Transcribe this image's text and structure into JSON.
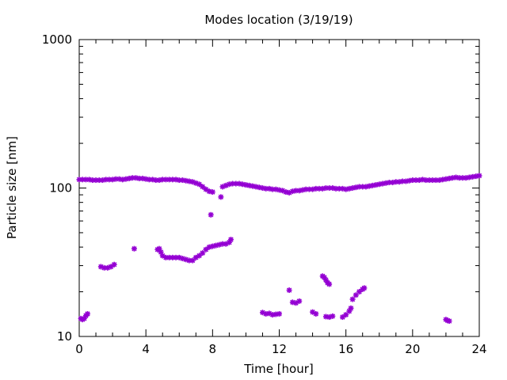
{
  "chart_data": {
    "type": "scatter",
    "title": "Modes location (3/19/19)",
    "xlabel": "Time [hour]",
    "ylabel": "Particle size [nm]",
    "xlim": [
      0,
      24
    ],
    "ylim": [
      10,
      1000
    ],
    "yscale": "log",
    "x_ticks": [
      0,
      4,
      8,
      12,
      16,
      20,
      24
    ],
    "x_tick_labels": [
      "0",
      "4",
      "8",
      "12",
      "16",
      "20",
      "24"
    ],
    "y_ticks": [
      10,
      100,
      1000
    ],
    "y_tick_labels": [
      "10",
      "100",
      "1000"
    ],
    "grid": false,
    "legend": "none",
    "marker_color": "#9400d3",
    "series": [
      {
        "values": [
          [
            0.0,
            114
          ],
          [
            0.2,
            114
          ],
          [
            0.4,
            114
          ],
          [
            0.6,
            114
          ],
          [
            0.8,
            113
          ],
          [
            1.0,
            113
          ],
          [
            1.2,
            113
          ],
          [
            1.4,
            113
          ],
          [
            1.6,
            114
          ],
          [
            1.8,
            114
          ],
          [
            2.0,
            114
          ],
          [
            2.2,
            115
          ],
          [
            2.4,
            115
          ],
          [
            2.6,
            114
          ],
          [
            2.8,
            115
          ],
          [
            3.0,
            116
          ],
          [
            3.2,
            117
          ],
          [
            3.4,
            117
          ],
          [
            3.6,
            116
          ],
          [
            3.8,
            116
          ],
          [
            4.0,
            115
          ],
          [
            4.2,
            114
          ],
          [
            4.4,
            114
          ],
          [
            4.6,
            113
          ],
          [
            4.8,
            113
          ],
          [
            5.0,
            114
          ],
          [
            5.2,
            114
          ],
          [
            5.4,
            114
          ],
          [
            5.6,
            114
          ],
          [
            5.8,
            114
          ],
          [
            6.0,
            113
          ],
          [
            6.2,
            113
          ],
          [
            6.4,
            112
          ],
          [
            6.6,
            111
          ],
          [
            6.8,
            110
          ],
          [
            7.0,
            108
          ],
          [
            7.2,
            106
          ],
          [
            7.4,
            102
          ],
          [
            7.6,
            98
          ],
          [
            7.8,
            95
          ],
          [
            8.0,
            94
          ],
          [
            8.6,
            102
          ],
          [
            8.8,
            104
          ],
          [
            9.0,
            106
          ],
          [
            9.2,
            107
          ],
          [
            9.4,
            107
          ],
          [
            9.6,
            107
          ],
          [
            9.8,
            106
          ],
          [
            10.0,
            105
          ],
          [
            10.2,
            104
          ],
          [
            10.4,
            103
          ],
          [
            10.6,
            102
          ],
          [
            10.8,
            101
          ],
          [
            11.0,
            100
          ],
          [
            11.2,
            99
          ],
          [
            11.4,
            99
          ],
          [
            11.6,
            98
          ],
          [
            11.8,
            98
          ],
          [
            12.0,
            97
          ],
          [
            12.2,
            96
          ],
          [
            12.4,
            94
          ],
          [
            12.6,
            93
          ],
          [
            12.8,
            95
          ],
          [
            13.0,
            96
          ],
          [
            13.2,
            96
          ],
          [
            13.4,
            97
          ],
          [
            13.6,
            98
          ],
          [
            13.8,
            98
          ],
          [
            14.0,
            98
          ],
          [
            14.2,
            99
          ],
          [
            14.4,
            99
          ],
          [
            14.6,
            99
          ],
          [
            14.8,
            100
          ],
          [
            15.0,
            100
          ],
          [
            15.2,
            100
          ],
          [
            15.4,
            99
          ],
          [
            15.6,
            99
          ],
          [
            15.8,
            99
          ],
          [
            16.0,
            98
          ],
          [
            16.2,
            99
          ],
          [
            16.4,
            100
          ],
          [
            16.6,
            101
          ],
          [
            16.8,
            102
          ],
          [
            17.0,
            102
          ],
          [
            17.2,
            102
          ],
          [
            17.4,
            103
          ],
          [
            17.6,
            104
          ],
          [
            17.8,
            105
          ],
          [
            18.0,
            106
          ],
          [
            18.2,
            107
          ],
          [
            18.4,
            108
          ],
          [
            18.6,
            109
          ],
          [
            18.8,
            109
          ],
          [
            19.0,
            110
          ],
          [
            19.2,
            110
          ],
          [
            19.4,
            111
          ],
          [
            19.6,
            111
          ],
          [
            19.8,
            112
          ],
          [
            20.0,
            113
          ],
          [
            20.2,
            113
          ],
          [
            20.4,
            113
          ],
          [
            20.6,
            114
          ],
          [
            20.8,
            113
          ],
          [
            21.0,
            113
          ],
          [
            21.2,
            113
          ],
          [
            21.4,
            113
          ],
          [
            21.6,
            113
          ],
          [
            21.8,
            114
          ],
          [
            22.0,
            115
          ],
          [
            22.2,
            116
          ],
          [
            22.4,
            117
          ],
          [
            22.6,
            118
          ],
          [
            22.8,
            117
          ],
          [
            23.0,
            117
          ],
          [
            23.2,
            117
          ],
          [
            23.4,
            118
          ],
          [
            23.6,
            119
          ],
          [
            23.8,
            120
          ],
          [
            24.0,
            121
          ],
          [
            7.9,
            66
          ],
          [
            8.5,
            87
          ],
          [
            1.3,
            29.5
          ],
          [
            1.5,
            29
          ],
          [
            1.7,
            29
          ],
          [
            1.9,
            29.5
          ],
          [
            2.1,
            30.5
          ],
          [
            3.3,
            39
          ],
          [
            4.7,
            38.5
          ],
          [
            4.8,
            39
          ],
          [
            4.9,
            37
          ],
          [
            5.0,
            35
          ],
          [
            5.2,
            34
          ],
          [
            5.4,
            34
          ],
          [
            5.6,
            34
          ],
          [
            5.8,
            34
          ],
          [
            6.0,
            34
          ],
          [
            6.2,
            33.5
          ],
          [
            6.4,
            33
          ],
          [
            6.6,
            32.5
          ],
          [
            6.8,
            32.5
          ],
          [
            7.0,
            34
          ],
          [
            7.2,
            35
          ],
          [
            7.4,
            36.5
          ],
          [
            7.6,
            38.5
          ],
          [
            7.8,
            40
          ],
          [
            8.0,
            40.5
          ],
          [
            8.2,
            41
          ],
          [
            8.4,
            41.5
          ],
          [
            8.6,
            42
          ],
          [
            8.8,
            42
          ],
          [
            9.0,
            43
          ],
          [
            9.1,
            45
          ],
          [
            0.1,
            13.2
          ],
          [
            0.2,
            13
          ],
          [
            0.3,
            13.2
          ],
          [
            0.4,
            13.8
          ],
          [
            0.5,
            14.2
          ],
          [
            11.0,
            14.5
          ],
          [
            11.2,
            14.2
          ],
          [
            11.4,
            14.3
          ],
          [
            11.6,
            14
          ],
          [
            11.8,
            14.1
          ],
          [
            12.0,
            14.2
          ],
          [
            12.6,
            20.5
          ],
          [
            12.8,
            17
          ],
          [
            13.0,
            16.8
          ],
          [
            13.2,
            17.3
          ],
          [
            14.0,
            14.6
          ],
          [
            14.2,
            14.2
          ],
          [
            14.6,
            25.5
          ],
          [
            14.7,
            25
          ],
          [
            14.8,
            24
          ],
          [
            14.9,
            23
          ],
          [
            15.0,
            22.5
          ],
          [
            14.8,
            13.6
          ],
          [
            15.0,
            13.5
          ],
          [
            15.2,
            13.7
          ],
          [
            15.8,
            13.5
          ],
          [
            16.0,
            14
          ],
          [
            16.2,
            14.8
          ],
          [
            16.3,
            15.5
          ],
          [
            16.4,
            17.8
          ],
          [
            16.6,
            19
          ],
          [
            16.8,
            20
          ],
          [
            17.0,
            20.8
          ],
          [
            17.1,
            21.2
          ],
          [
            22.0,
            13
          ],
          [
            22.1,
            12.8
          ],
          [
            22.2,
            12.7
          ]
        ]
      }
    ]
  }
}
